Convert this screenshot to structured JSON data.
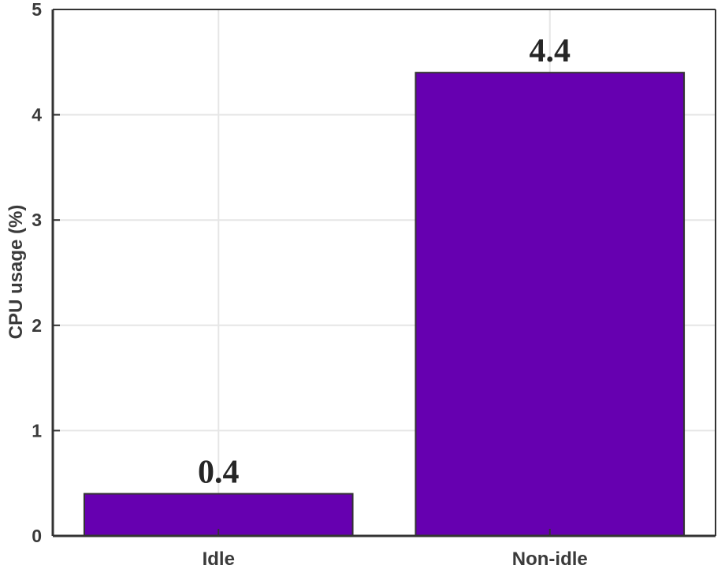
{
  "chart_data": {
    "type": "bar",
    "categories": [
      "Idle",
      "Non-idle"
    ],
    "values": [
      0.4,
      4.4
    ],
    "data_labels": [
      "0.4",
      "4.4"
    ],
    "title": "",
    "xlabel": "",
    "ylabel": "CPU usage (%)",
    "ylim": [
      0,
      5
    ],
    "yticks": [
      0,
      1,
      2,
      3,
      4,
      5
    ],
    "ytick_labels": [
      "0",
      "1",
      "2",
      "3",
      "4",
      "5"
    ],
    "grid": true,
    "legend": "none",
    "colors": {
      "bar_fill": "#6600B0",
      "bar_edge": "#333333",
      "grid": "#e6e6e6",
      "axis": "#333333"
    }
  }
}
